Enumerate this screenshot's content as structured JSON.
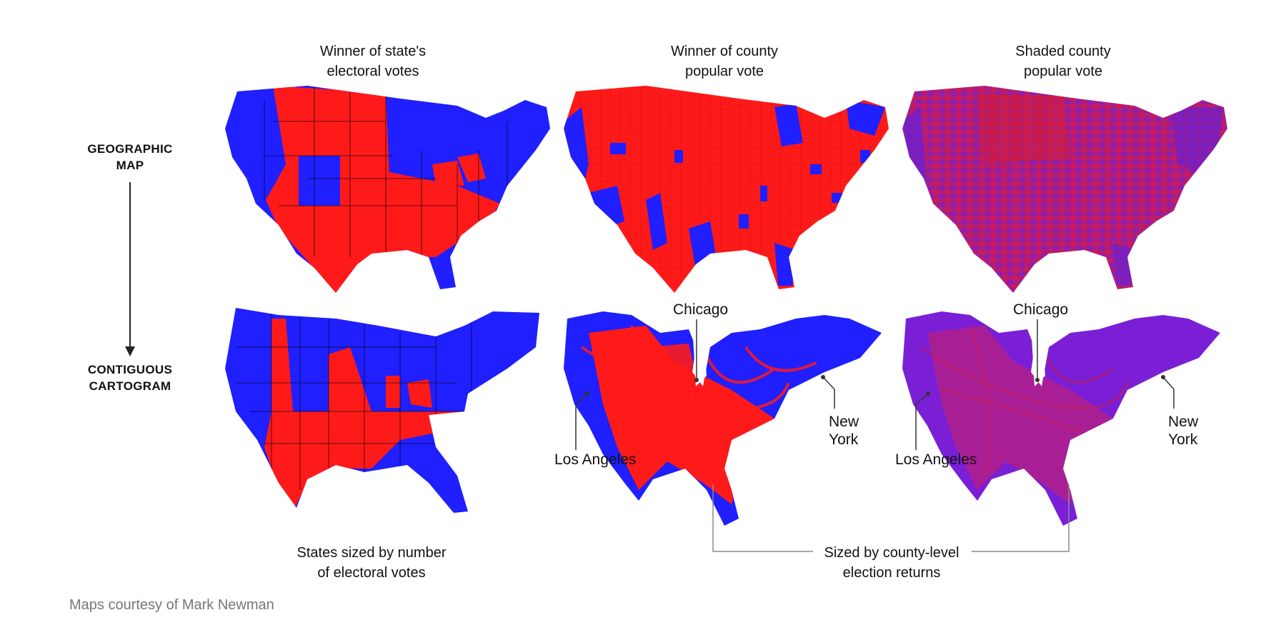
{
  "colors": {
    "red": "#ff1a1a",
    "blue": "#1f1fff",
    "purple_a": "#7a1fd6",
    "purple_b": "#b0208a",
    "gray_line": "#8a8a8a"
  },
  "columns": [
    {
      "title": "Winner of state's\nelectoral votes"
    },
    {
      "title": "Winner of county\npopular vote"
    },
    {
      "title": "Shaded county\npopular vote"
    }
  ],
  "rows": [
    {
      "label": "GEOGRAPHIC\nMAP"
    },
    {
      "label": "CONTIGUOUS\nCARTOGRAM"
    }
  ],
  "cities": {
    "chicago": "Chicago",
    "new_york": "New\nYork",
    "los_angeles": "Los Angeles"
  },
  "captions": {
    "electoral_size": "States sized by number\nof electoral votes",
    "county_size": "Sized by county-level\nelection returns"
  },
  "credit": "Maps courtesy of Mark Newman"
}
